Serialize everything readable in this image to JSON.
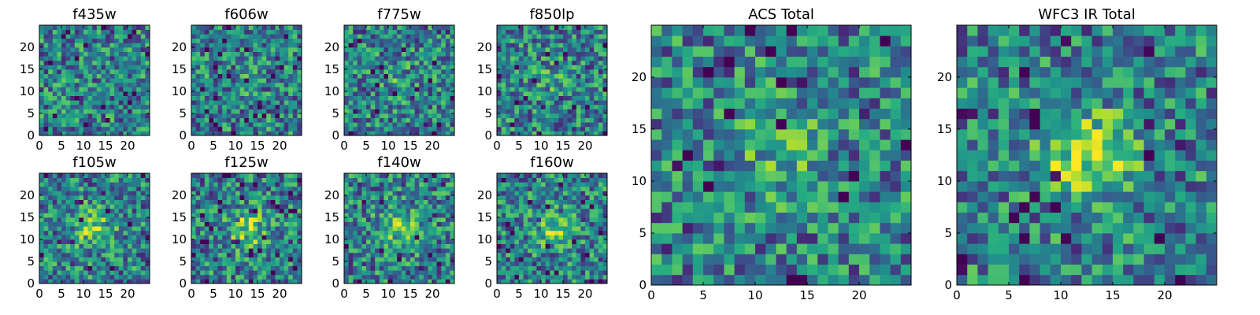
{
  "chart_data": [
    {
      "type": "heatmap",
      "title": "f435w",
      "xticks": [
        0,
        5,
        10,
        15,
        20
      ],
      "yticks": [
        0,
        5,
        10,
        15,
        20
      ],
      "xlim": [
        0,
        25
      ],
      "ylim": [
        0,
        25
      ],
      "grid": false,
      "colormap": "viridis",
      "seed": 11,
      "blob": 0.0
    },
    {
      "type": "heatmap",
      "title": "f606w",
      "xticks": [
        0,
        5,
        10,
        15,
        20
      ],
      "yticks": [
        0,
        5,
        10,
        15,
        20
      ],
      "xlim": [
        0,
        25
      ],
      "ylim": [
        0,
        25
      ],
      "grid": false,
      "colormap": "viridis",
      "seed": 23,
      "blob": 0.05
    },
    {
      "type": "heatmap",
      "title": "f775w",
      "xticks": [
        0,
        5,
        10,
        15,
        20
      ],
      "yticks": [
        0,
        5,
        10,
        15,
        20
      ],
      "xlim": [
        0,
        25
      ],
      "ylim": [
        0,
        25
      ],
      "grid": false,
      "colormap": "viridis",
      "seed": 37,
      "blob": 0.1
    },
    {
      "type": "heatmap",
      "title": "f850lp",
      "xticks": [
        0,
        5,
        10,
        15,
        20
      ],
      "yticks": [
        0,
        5,
        10,
        15,
        20
      ],
      "xlim": [
        0,
        25
      ],
      "ylim": [
        0,
        25
      ],
      "grid": false,
      "colormap": "viridis",
      "seed": 41,
      "blob": 0.1
    },
    {
      "type": "heatmap",
      "title": "f105w",
      "xticks": [
        0,
        5,
        10,
        15,
        20
      ],
      "yticks": [
        0,
        5,
        10,
        15,
        20
      ],
      "xlim": [
        0,
        25
      ],
      "ylim": [
        0,
        25
      ],
      "grid": false,
      "colormap": "viridis",
      "seed": 53,
      "blob": 0.35
    },
    {
      "type": "heatmap",
      "title": "f125w",
      "xticks": [
        0,
        5,
        10,
        15,
        20
      ],
      "yticks": [
        0,
        5,
        10,
        15,
        20
      ],
      "xlim": [
        0,
        25
      ],
      "ylim": [
        0,
        25
      ],
      "grid": false,
      "colormap": "viridis",
      "seed": 67,
      "blob": 0.35
    },
    {
      "type": "heatmap",
      "title": "f140w",
      "xticks": [
        0,
        5,
        10,
        15,
        20
      ],
      "yticks": [
        0,
        5,
        10,
        15,
        20
      ],
      "xlim": [
        0,
        25
      ],
      "ylim": [
        0,
        25
      ],
      "grid": false,
      "colormap": "viridis",
      "seed": 79,
      "blob": 0.35
    },
    {
      "type": "heatmap",
      "title": "f160w",
      "xticks": [
        0,
        5,
        10,
        15,
        20
      ],
      "yticks": [
        0,
        5,
        10,
        15,
        20
      ],
      "xlim": [
        0,
        25
      ],
      "ylim": [
        0,
        25
      ],
      "grid": false,
      "colormap": "viridis",
      "seed": 83,
      "blob": 0.3
    },
    {
      "type": "heatmap",
      "title": "ACS Total",
      "xticks": [
        0,
        5,
        10,
        15,
        20
      ],
      "yticks": [
        0,
        5,
        10,
        15,
        20
      ],
      "xlim": [
        0,
        25
      ],
      "ylim": [
        0,
        25
      ],
      "grid": false,
      "colormap": "viridis",
      "seed": 97,
      "blob": 0.2
    },
    {
      "type": "heatmap",
      "title": "WFC3 IR Total",
      "xticks": [
        0,
        5,
        10,
        15,
        20
      ],
      "yticks": [
        0,
        5,
        10,
        15,
        20
      ],
      "xlim": [
        0,
        25
      ],
      "ylim": [
        0,
        25
      ],
      "grid": false,
      "colormap": "viridis",
      "seed": 101,
      "blob": 0.45
    }
  ]
}
